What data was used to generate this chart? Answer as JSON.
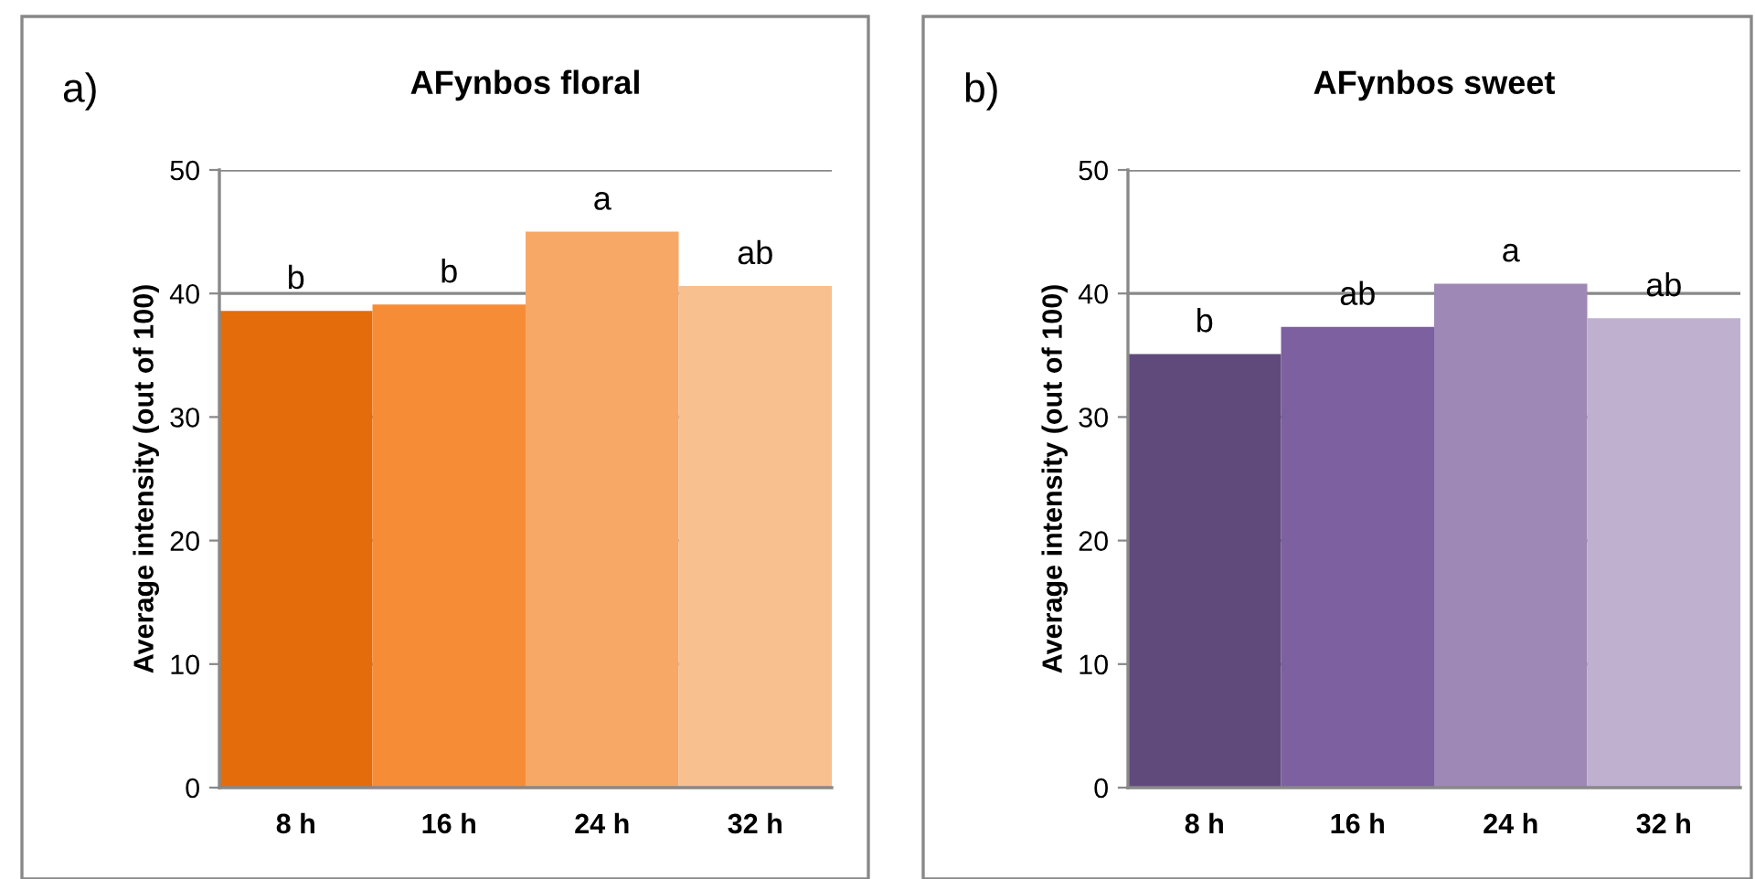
{
  "chart_data": [
    {
      "type": "bar",
      "title": "AFynbos floral",
      "ylabel": "Average intensity (out of 100)",
      "categories": [
        "8 h",
        "16 h",
        "24 h",
        "32 h"
      ],
      "values": [
        38.6,
        39.1,
        45.0,
        40.6
      ],
      "colors": [
        "#e46c0a",
        "#f68d36",
        "#f7a867",
        "#f8bf8f"
      ],
      "ylim": [
        0,
        50
      ],
      "yticks": [
        0,
        10,
        20,
        30,
        40,
        50
      ],
      "grid": "y",
      "annotations": [
        "a)",
        {
          "text": "b",
          "x": "8 h",
          "y": 38.6
        },
        {
          "text": "b",
          "x": "16 h",
          "y": 39.1
        },
        {
          "text": "a",
          "x": "24 h",
          "y": 45.0
        },
        {
          "text": "ab",
          "x": "32 h",
          "y": 40.6
        }
      ]
    },
    {
      "type": "bar",
      "title": "AFynbos sweet",
      "ylabel": "Average intensity (out of 100)",
      "categories": [
        "8 h",
        "16 h",
        "24 h",
        "32 h"
      ],
      "values": [
        35.1,
        37.3,
        40.8,
        38.0
      ],
      "colors": [
        "#604a7b",
        "#7d60a0",
        "#9e88b5",
        "#bfb0d0"
      ],
      "ylim": [
        0,
        50
      ],
      "yticks": [
        0,
        10,
        20,
        30,
        40,
        50
      ],
      "grid": "y",
      "annotations": [
        "b)",
        {
          "text": "b",
          "x": "8 h",
          "y": 35.1
        },
        {
          "text": "ab",
          "x": "16 h",
          "y": 37.3
        },
        {
          "text": "a",
          "x": "24 h",
          "y": 40.8
        },
        {
          "text": "ab",
          "x": "32 h",
          "y": 38.0
        }
      ]
    }
  ]
}
